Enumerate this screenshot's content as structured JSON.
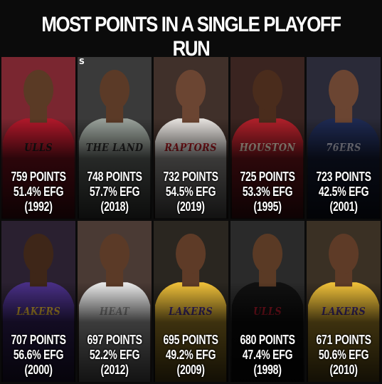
{
  "title": "MOST POINTS IN A SINGLE PLAYOFF RUN",
  "badge": "S",
  "cards": [
    {
      "points": "759 POINTS",
      "efg": "51.4% EFG",
      "year": "(1992)",
      "jersey_text": "ULLS",
      "jersey_color": "#b0182a",
      "bg_color": "#7a2630",
      "skin": "#5a3a25",
      "text_color": "#1a1a1a"
    },
    {
      "points": "748 POINTS",
      "efg": "57.7% EFG",
      "year": "(2018)",
      "jersey_text": "THE LAND",
      "jersey_color": "#9aa29b",
      "bg_color": "#3a3a3a",
      "skin": "#5b3a27",
      "text_color": "#2a2a2a"
    },
    {
      "points": "732 POINTS",
      "efg": "54.5% EFG",
      "year": "(2019)",
      "jersey_text": "RAPTORS",
      "jersey_color": "#e8e4e0",
      "bg_color": "#40302a",
      "skin": "#6b4532",
      "text_color": "#b11a22"
    },
    {
      "points": "725 POINTS",
      "efg": "53.3% EFG",
      "year": "(1995)",
      "jersey_text": "HOUSTON",
      "jersey_color": "#b0202a",
      "bg_color": "#3a2420",
      "skin": "#4a2c1c",
      "text_color": "#f0e6d0"
    },
    {
      "points": "723 POINTS",
      "efg": "42.5% EFG",
      "year": "(2001)",
      "jersey_text": "76ERS",
      "jersey_color": "#1e2a52",
      "bg_color": "#2a2a38",
      "skin": "#6b4532",
      "text_color": "#c8c8d8"
    },
    {
      "points": "707 POINTS",
      "efg": "56.6% EFG",
      "year": "(2000)",
      "jersey_text": "LAKERS",
      "jersey_color": "#4a3088",
      "bg_color": "#2a2030",
      "skin": "#3e2618",
      "text_color": "#f3c33a"
    },
    {
      "points": "697 POINTS",
      "efg": "52.2% EFG",
      "year": "(2012)",
      "jersey_text": "HEAT",
      "jersey_color": "#ececec",
      "bg_color": "#4a3a34",
      "skin": "#5b3a27",
      "text_color": "#9a9a9a"
    },
    {
      "points": "695 POINTS",
      "efg": "49.2% EFG",
      "year": "(2009)",
      "jersey_text": "LAKERS",
      "jersey_color": "#f3c33a",
      "bg_color": "#2a2620",
      "skin": "#5e3b27",
      "text_color": "#4a3088"
    },
    {
      "points": "680 POINTS",
      "efg": "47.4% EFG",
      "year": "(1998)",
      "jersey_text": "ULLS",
      "jersey_color": "#111111",
      "bg_color": "#2a2a2a",
      "skin": "#5a3a25",
      "text_color": "#b0182a"
    },
    {
      "points": "671 POINTS",
      "efg": "50.6% EFG",
      "year": "(2010)",
      "jersey_text": "LAKERS",
      "jersey_color": "#f3c33a",
      "bg_color": "#3a3024",
      "skin": "#5e3b27",
      "text_color": "#4a3088"
    }
  ]
}
